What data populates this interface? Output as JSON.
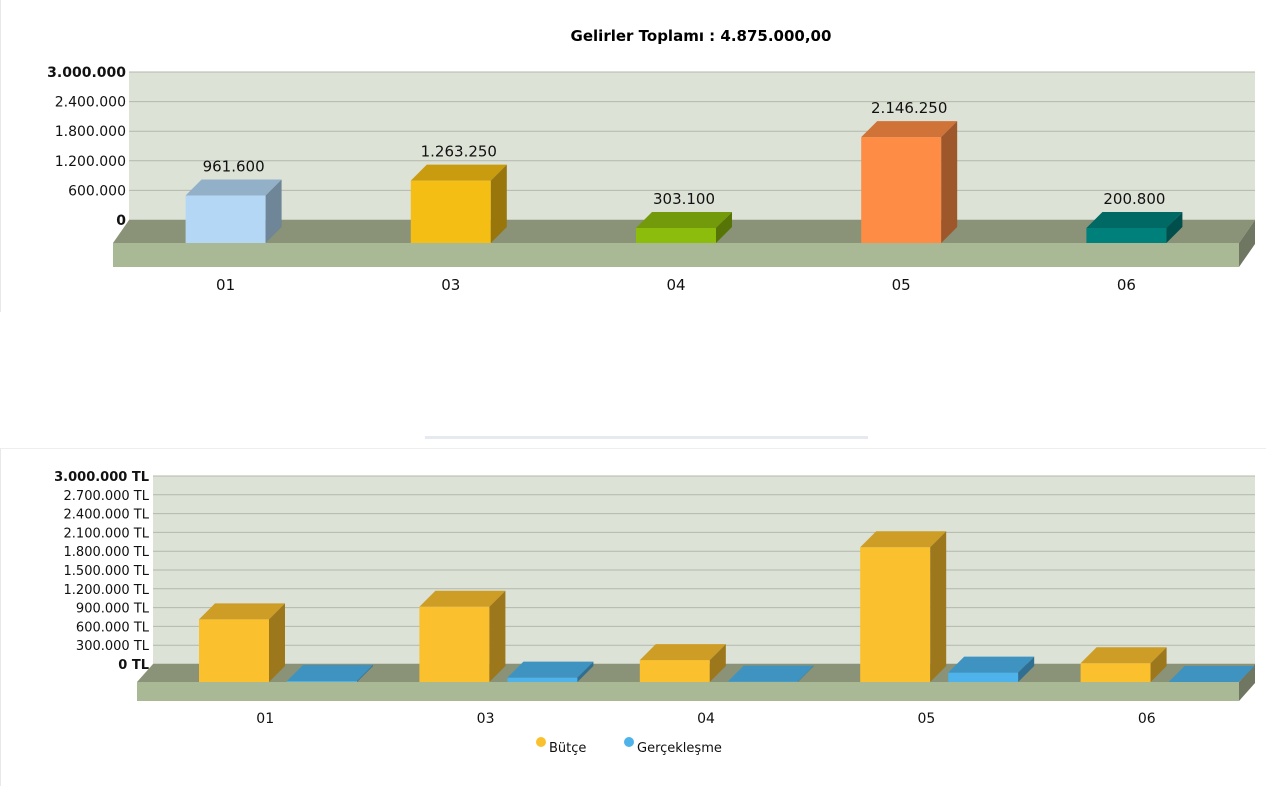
{
  "chart_data": [
    {
      "type": "bar",
      "title": "Gelirler Toplamı : 4.875.000,00",
      "categories": [
        "01",
        "03",
        "04",
        "05",
        "06"
      ],
      "values": [
        961600,
        1263250,
        303100,
        2146250,
        200800
      ],
      "value_labels": [
        "961.600",
        "1.263.250",
        "303.100",
        "2.146.250",
        "200.800"
      ],
      "colors": [
        "#b3d7f5",
        "#f5be14",
        "#8cbc0c",
        "#fe8c45",
        "#00807a"
      ],
      "y_ticks": [
        "3.000.000",
        "2.400.000",
        "1.800.000",
        "1.200.000",
        "600.000",
        "0"
      ],
      "ylim": [
        0,
        3000000
      ],
      "grid": true,
      "three_d": true
    },
    {
      "type": "bar",
      "categories": [
        "01",
        "03",
        "04",
        "05",
        "06"
      ],
      "series": [
        {
          "name": "Bütçe",
          "color": "#fbc02d",
          "values": [
            1000000,
            1200000,
            350000,
            2150000,
            300000
          ]
        },
        {
          "name": "Gerçekleşme",
          "color": "#4db3ea",
          "values": [
            15000,
            70000,
            5000,
            150000,
            0
          ]
        }
      ],
      "y_ticks": [
        "3.000.000 TL",
        "2.700.000 TL",
        "2.400.000 TL",
        "2.100.000 TL",
        "1.800.000 TL",
        "1.500.000 TL",
        "1.200.000 TL",
        "900.000 TL",
        "600.000 TL",
        "300.000 TL",
        "0 TL"
      ],
      "ylim": [
        0,
        3000000
      ],
      "legend_position": "bottom",
      "grid": true,
      "three_d": true
    }
  ]
}
